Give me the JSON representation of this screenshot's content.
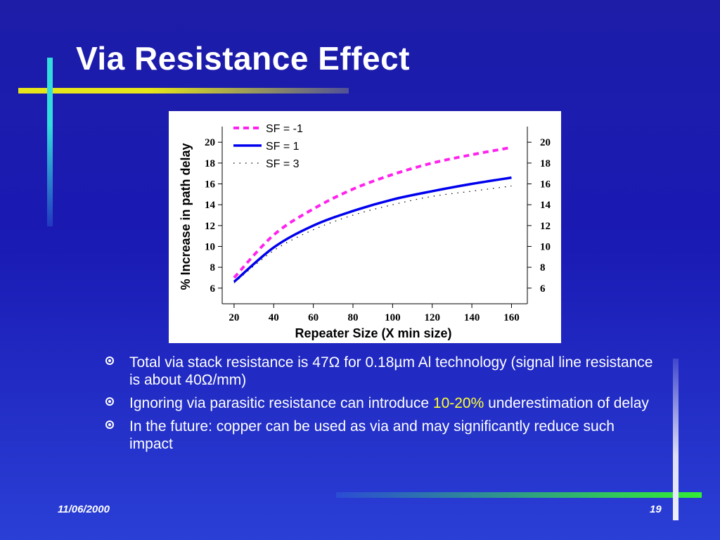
{
  "slide": {
    "title": "Via Resistance Effect",
    "date": "11/06/2000",
    "page_number": "19"
  },
  "bullets": [
    {
      "parts": [
        {
          "text": "Total via stack resistance is 47Ω for 0.18µm Al technology (signal line resistance is  about 40Ω/mm)",
          "highlight": false
        }
      ]
    },
    {
      "parts": [
        {
          "text": "Ignoring via parasitic resistance can introduce ",
          "highlight": false
        },
        {
          "text": "10-20%",
          "highlight": true
        },
        {
          "text": " underestimation of delay",
          "highlight": false
        }
      ]
    },
    {
      "parts": [
        {
          "text": "In the future: copper can be used as via and may significantly reduce such impact",
          "highlight": false
        }
      ]
    }
  ],
  "colors": {
    "background": "#1a1ab4",
    "title": "#ffffff",
    "highlight": "#ffff33",
    "series_sf_minus1": "#ff22ee",
    "series_sf_1": "#0000ee",
    "series_sf_3": "#000000",
    "deco_yellow": "#e6e61a",
    "deco_cyan": "#33dddd",
    "deco_green": "#33ee33",
    "deco_lavender": "#ccccee"
  },
  "chart_data": {
    "type": "line",
    "title": "",
    "xlabel": "Repeater Size (X min size)",
    "ylabel": "% Increase in path delay",
    "xlim": [
      14,
      168
    ],
    "ylim": [
      4.5,
      21.5
    ],
    "x_ticks": [
      "20",
      "40",
      "60",
      "80",
      "100",
      "120",
      "140",
      "160"
    ],
    "y_ticks": [
      "6",
      "8",
      "10",
      "12",
      "14",
      "16",
      "18",
      "20"
    ],
    "y_ticks_right": [
      "6",
      "8",
      "10",
      "12",
      "14",
      "16",
      "18",
      "20"
    ],
    "legend_position": "top-left",
    "x": [
      20,
      40,
      60,
      80,
      100,
      120,
      140,
      160
    ],
    "series": [
      {
        "name": "SF = -1",
        "style": "dashed",
        "values": [
          7.0,
          11.1,
          13.6,
          15.5,
          16.9,
          18.0,
          18.8,
          19.5
        ]
      },
      {
        "name": "SF = 1",
        "style": "solid",
        "values": [
          6.6,
          9.9,
          12.0,
          13.4,
          14.5,
          15.3,
          16.0,
          16.6
        ]
      },
      {
        "name": "SF = 3",
        "style": "dotted",
        "values": [
          6.5,
          9.6,
          11.6,
          13.0,
          14.0,
          14.8,
          15.3,
          15.8
        ]
      }
    ]
  }
}
